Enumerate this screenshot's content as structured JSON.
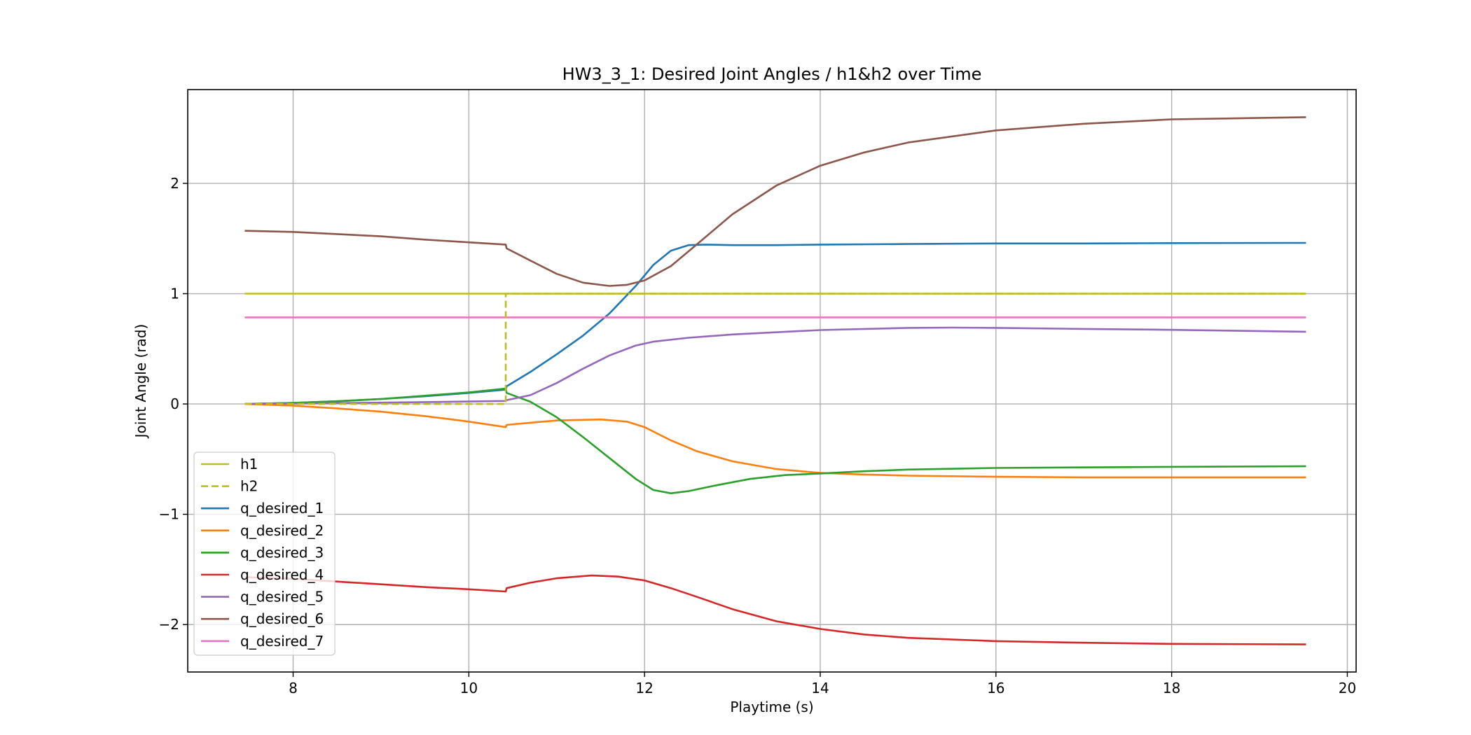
{
  "chart_data": {
    "type": "line",
    "title": "HW3_3_1: Desired Joint Angles / h1&h2 over Time",
    "xlabel": "Playtime (s)",
    "ylabel": "Joint Angle (rad)",
    "xlim": [
      6.8,
      20.1
    ],
    "ylim": [
      -2.43,
      2.85
    ],
    "xticks": [
      8,
      10,
      12,
      14,
      16,
      18,
      20
    ],
    "yticks": [
      -2,
      -1,
      0,
      1,
      2
    ],
    "xtick_labels": [
      "8",
      "10",
      "12",
      "14",
      "16",
      "18",
      "20"
    ],
    "ytick_labels": [
      "−2",
      "−1",
      "0",
      "1",
      "2"
    ],
    "grid": true,
    "legend_position": "lower-left",
    "series": [
      {
        "name": "h1",
        "color": "#bcbd22",
        "dash": "solid",
        "x": [
          7.45,
          10.42,
          19.53
        ],
        "y": [
          1.0,
          1.0,
          1.0
        ]
      },
      {
        "name": "h2",
        "color": "#bcbd22",
        "dash": "dashed",
        "x": [
          7.45,
          10.42,
          10.42,
          19.53
        ],
        "y": [
          0.0,
          0.0,
          1.0,
          1.0
        ]
      },
      {
        "name": "q_desired_1",
        "color": "#1f77b4",
        "dash": "solid",
        "x": [
          7.45,
          8.0,
          8.5,
          9.0,
          9.5,
          10.0,
          10.42,
          10.43,
          10.7,
          11.0,
          11.3,
          11.6,
          11.9,
          12.1,
          12.3,
          12.5,
          12.7,
          13.0,
          13.5,
          14.0,
          15.0,
          16.0,
          17.0,
          18.0,
          19.53
        ],
        "y": [
          0.0,
          0.01,
          0.025,
          0.045,
          0.07,
          0.1,
          0.13,
          0.16,
          0.29,
          0.45,
          0.62,
          0.82,
          1.07,
          1.26,
          1.39,
          1.44,
          1.445,
          1.44,
          1.44,
          1.445,
          1.45,
          1.455,
          1.455,
          1.458,
          1.46
        ]
      },
      {
        "name": "q_desired_2",
        "color": "#ff7f0e",
        "dash": "solid",
        "x": [
          7.45,
          8.0,
          8.5,
          9.0,
          9.5,
          10.0,
          10.42,
          10.43,
          10.7,
          11.0,
          11.5,
          11.8,
          12.0,
          12.3,
          12.6,
          13.0,
          13.5,
          14.0,
          14.5,
          15.0,
          16.0,
          17.0,
          18.0,
          19.53
        ],
        "y": [
          0.0,
          -0.015,
          -0.04,
          -0.07,
          -0.11,
          -0.16,
          -0.21,
          -0.19,
          -0.17,
          -0.15,
          -0.14,
          -0.16,
          -0.21,
          -0.33,
          -0.43,
          -0.52,
          -0.59,
          -0.625,
          -0.64,
          -0.65,
          -0.66,
          -0.665,
          -0.665,
          -0.665
        ]
      },
      {
        "name": "q_desired_3",
        "color": "#2ca02c",
        "dash": "solid",
        "x": [
          7.45,
          8.0,
          8.5,
          9.0,
          9.5,
          10.0,
          10.42,
          10.43,
          10.7,
          11.0,
          11.3,
          11.6,
          11.9,
          12.1,
          12.3,
          12.5,
          12.8,
          13.2,
          13.6,
          14.0,
          14.5,
          15.0,
          16.0,
          17.0,
          18.0,
          19.53
        ],
        "y": [
          0.0,
          0.01,
          0.025,
          0.045,
          0.075,
          0.105,
          0.14,
          0.1,
          0.02,
          -0.12,
          -0.3,
          -0.49,
          -0.68,
          -0.78,
          -0.81,
          -0.79,
          -0.74,
          -0.68,
          -0.645,
          -0.63,
          -0.61,
          -0.595,
          -0.58,
          -0.575,
          -0.57,
          -0.565
        ]
      },
      {
        "name": "q_desired_4",
        "color": "#d62728",
        "dash": "solid",
        "x": [
          7.45,
          8.0,
          8.5,
          9.0,
          9.5,
          10.0,
          10.42,
          10.43,
          10.7,
          11.0,
          11.4,
          11.7,
          12.0,
          12.3,
          12.6,
          13.0,
          13.5,
          14.0,
          14.5,
          15.0,
          16.0,
          17.0,
          18.0,
          19.53
        ],
        "y": [
          -1.57,
          -1.585,
          -1.61,
          -1.635,
          -1.66,
          -1.68,
          -1.7,
          -1.67,
          -1.62,
          -1.58,
          -1.555,
          -1.565,
          -1.6,
          -1.67,
          -1.75,
          -1.86,
          -1.97,
          -2.04,
          -2.09,
          -2.12,
          -2.15,
          -2.165,
          -2.175,
          -2.18
        ]
      },
      {
        "name": "q_desired_5",
        "color": "#9467bd",
        "dash": "solid",
        "x": [
          7.45,
          8.0,
          8.5,
          9.0,
          9.5,
          10.0,
          10.42,
          10.43,
          10.7,
          11.0,
          11.3,
          11.6,
          11.9,
          12.1,
          12.5,
          13.0,
          14.0,
          15.0,
          15.5,
          16.0,
          17.0,
          18.0,
          19.53
        ],
        "y": [
          0.0,
          0.004,
          0.008,
          0.012,
          0.017,
          0.022,
          0.027,
          0.035,
          0.08,
          0.19,
          0.32,
          0.44,
          0.53,
          0.565,
          0.6,
          0.63,
          0.67,
          0.69,
          0.692,
          0.69,
          0.68,
          0.672,
          0.655
        ]
      },
      {
        "name": "q_desired_6",
        "color": "#8c564b",
        "dash": "solid",
        "x": [
          7.45,
          8.0,
          8.5,
          9.0,
          9.5,
          10.0,
          10.42,
          10.43,
          10.7,
          11.0,
          11.3,
          11.6,
          11.8,
          12.0,
          12.3,
          12.6,
          13.0,
          13.5,
          14.0,
          14.5,
          15.0,
          16.0,
          17.0,
          18.0,
          19.53
        ],
        "y": [
          1.57,
          1.56,
          1.54,
          1.52,
          1.49,
          1.465,
          1.445,
          1.41,
          1.3,
          1.18,
          1.1,
          1.07,
          1.08,
          1.12,
          1.25,
          1.45,
          1.72,
          1.98,
          2.16,
          2.28,
          2.37,
          2.48,
          2.54,
          2.58,
          2.6
        ]
      },
      {
        "name": "q_desired_7",
        "color": "#e377c2",
        "dash": "solid",
        "x": [
          7.45,
          10.42,
          19.53
        ],
        "y": [
          0.785,
          0.785,
          0.785
        ]
      }
    ]
  }
}
